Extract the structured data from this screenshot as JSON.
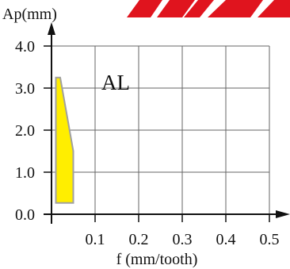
{
  "chart_data": {
    "type": "area",
    "title": "",
    "xlabel": "f (mm/tooth)",
    "ylabel": "Ap(mm)",
    "xlim": [
      0,
      0.5
    ],
    "ylim": [
      0,
      4.0
    ],
    "x_ticks": [
      "0.1",
      "0.2",
      "0.3",
      "0.4",
      "0.5"
    ],
    "y_ticks": [
      "0.0",
      "1.0",
      "2.0",
      "3.0",
      "4.0"
    ],
    "grid": true,
    "series": [
      {
        "name": "AL",
        "color": "#FFEE00",
        "edge_color": "#A0A0A0",
        "polygon": [
          [
            0.01,
            0.27
          ],
          [
            0.01,
            3.25
          ],
          [
            0.02,
            3.25
          ],
          [
            0.05,
            1.5
          ],
          [
            0.05,
            0.27
          ]
        ]
      }
    ],
    "annotations": [
      {
        "text": "AL",
        "x": 0.16,
        "y": 3.15
      }
    ]
  },
  "banner_color": "#E0141E"
}
